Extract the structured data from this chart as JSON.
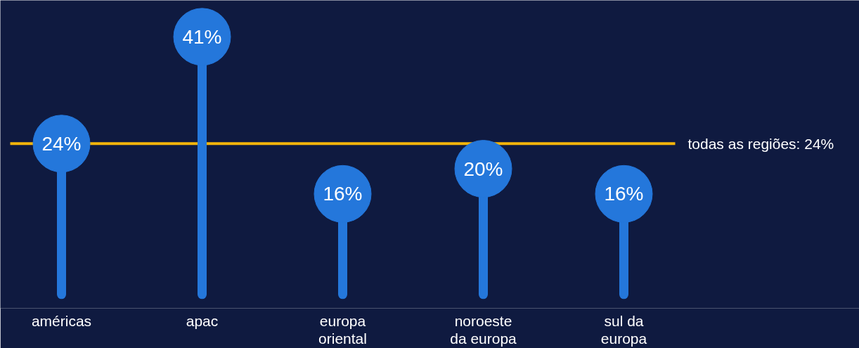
{
  "chart_data": {
    "type": "lollipop",
    "categories": [
      "américas",
      "apac",
      "europa\noriental",
      "noroeste\nda europa",
      "sul da\neuropa"
    ],
    "values": [
      24,
      41,
      16,
      20,
      16
    ],
    "value_labels": [
      "24%",
      "41%",
      "16%",
      "20%",
      "16%"
    ],
    "color": "#2477db",
    "ylim": [
      -2.2,
      46.8
    ],
    "ref_lines": [
      {
        "axis": "y",
        "value": 24,
        "label": "todas as regiões: 24%",
        "color": "#f5b50a"
      }
    ],
    "tick_labels": "x",
    "grid": false
  }
}
